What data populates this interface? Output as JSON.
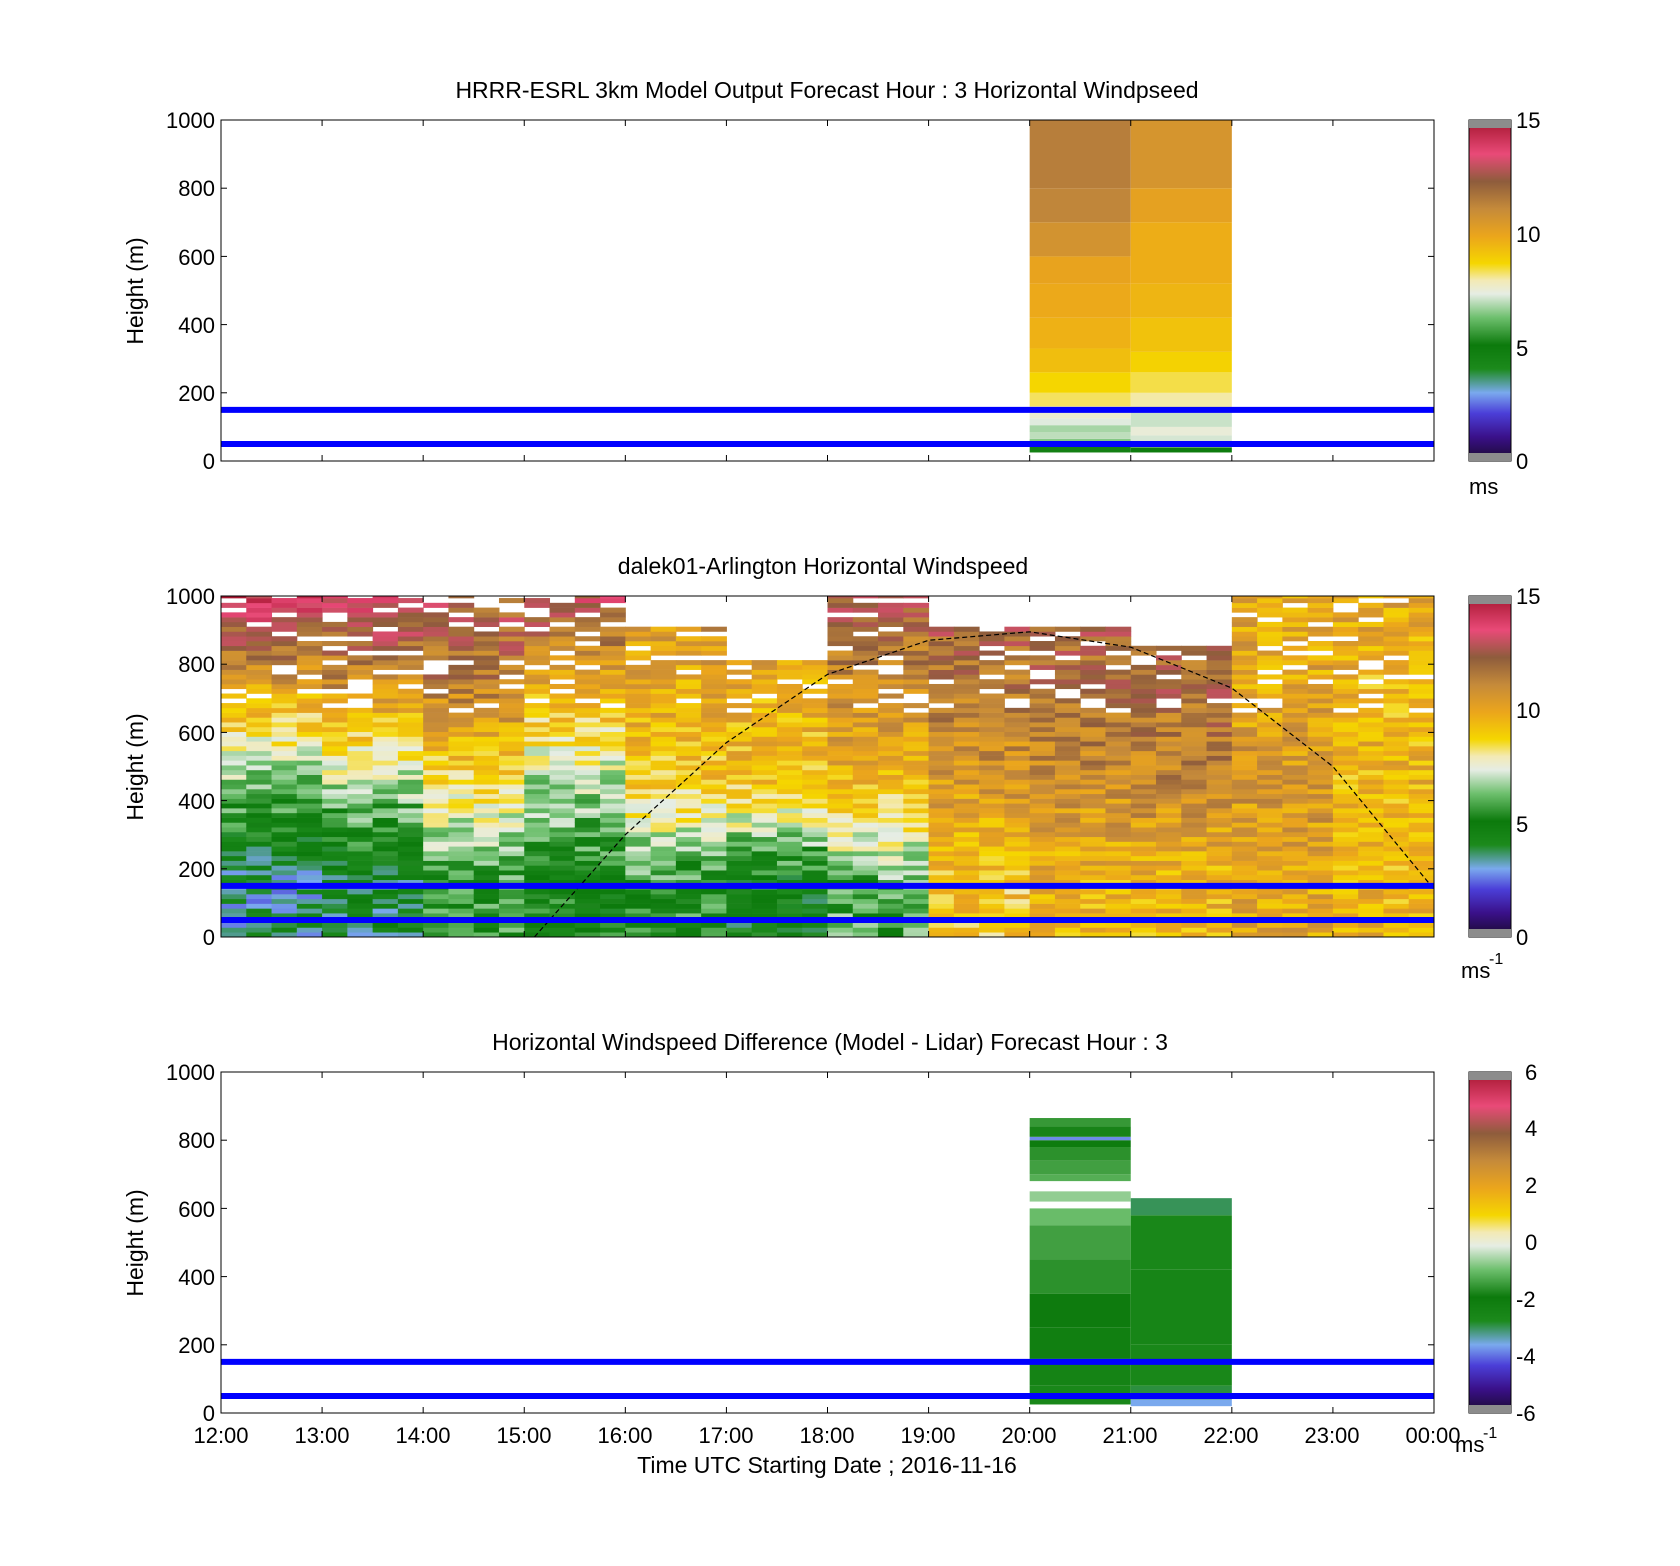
{
  "chart_data": [
    {
      "type": "heatmap",
      "title": "HRRR-ESRL 3km Model Output   Forecast Hour : 3 Horizontal Windpseed",
      "ylabel": "Height (m)",
      "ylim": [
        0,
        1000
      ],
      "yticks": [
        "0",
        "200",
        "400",
        "600",
        "800",
        "1000"
      ],
      "xlim": [
        "12:00",
        "00:00"
      ],
      "colorbar": {
        "ticks": [
          "0",
          "5",
          "10",
          "15"
        ],
        "range": [
          0,
          15
        ],
        "unit": "ms"
      },
      "reference_lines_m": [
        50,
        150
      ],
      "columns": [
        {
          "start": "20:00",
          "end": "21:00",
          "bottom_m": 25,
          "top_m": 1000,
          "levels": [
            [
              25,
              50,
              5.2
            ],
            [
              50,
              65,
              6.5
            ],
            [
              65,
              85,
              7.0
            ],
            [
              85,
              105,
              6.8
            ],
            [
              105,
              125,
              7.3
            ],
            [
              125,
              160,
              7.6
            ],
            [
              160,
              200,
              8.3
            ],
            [
              200,
              260,
              8.7
            ],
            [
              260,
              330,
              9.3
            ],
            [
              330,
              420,
              9.6
            ],
            [
              420,
              520,
              9.8
            ],
            [
              520,
              600,
              10.0
            ],
            [
              600,
              700,
              10.7
            ],
            [
              700,
              800,
              11.2
            ],
            [
              800,
              1000,
              11.4
            ]
          ]
        },
        {
          "start": "21:00",
          "end": "22:00",
          "bottom_m": 25,
          "top_m": 1000,
          "levels": [
            [
              25,
              40,
              5.0
            ],
            [
              40,
              55,
              6.8
            ],
            [
              55,
              75,
              7.2
            ],
            [
              75,
              100,
              7.5
            ],
            [
              100,
              145,
              7.1
            ],
            [
              145,
              200,
              8.0
            ],
            [
              200,
              260,
              8.4
            ],
            [
              260,
              320,
              8.8
            ],
            [
              320,
              420,
              9.2
            ],
            [
              420,
              520,
              9.5
            ],
            [
              520,
              700,
              9.7
            ],
            [
              700,
              800,
              10.1
            ],
            [
              800,
              1000,
              10.6
            ]
          ]
        }
      ]
    },
    {
      "type": "heatmap",
      "title": "dalek01-Arlington  Horizontal Windspeed",
      "ylabel": "Height (m)",
      "ylim": [
        0,
        1000
      ],
      "yticks": [
        "0",
        "200",
        "400",
        "600",
        "800",
        "1000"
      ],
      "xlim": [
        "12:00",
        "00:00"
      ],
      "colorbar": {
        "ticks": [
          "0",
          "5",
          "10",
          "15"
        ],
        "range": [
          0,
          15
        ],
        "unit": "ms",
        "unit_exp": "-1"
      },
      "reference_lines_m": [
        50,
        150
      ],
      "boundary_curve": {
        "style": "dashed",
        "points_h_m": [
          [
            15.1,
            0
          ],
          [
            16.0,
            300
          ],
          [
            17.0,
            570
          ],
          [
            18.0,
            770
          ],
          [
            19.0,
            870
          ],
          [
            20.0,
            895
          ],
          [
            21.0,
            850
          ],
          [
            22.0,
            730
          ],
          [
            23.0,
            500
          ],
          [
            24.0,
            140
          ]
        ]
      },
      "columns_hourly": [
        {
          "hour": "12:00",
          "low": 3.5,
          "mid": 6.5,
          "high": 10.5,
          "top": 14.0,
          "cover_m": 1000
        },
        {
          "hour": "13:00",
          "low": 4.0,
          "mid": 7.0,
          "high": 11.0,
          "top": 13.5,
          "cover_m": 1000
        },
        {
          "hour": "14:00",
          "low": 5.5,
          "mid": 8.5,
          "high": 11.5,
          "top": 12.5,
          "cover_m": 1000
        },
        {
          "hour": "15:00",
          "low": 5.0,
          "mid": 7.0,
          "high": 10.0,
          "top": 13.0,
          "cover_m": 1000
        },
        {
          "hour": "16:00",
          "low": 5.5,
          "mid": 9.0,
          "high": 10.0,
          "top": 11.0,
          "cover_m": 900
        },
        {
          "hour": "17:00",
          "low": 4.5,
          "mid": 9.2,
          "high": 9.8,
          "top": 10.5,
          "cover_m": 800
        },
        {
          "hour": "18:00",
          "low": 6.0,
          "mid": 9.5,
          "high": 11.0,
          "top": 12.5,
          "cover_m": 1000
        },
        {
          "hour": "19:00",
          "low": 9.0,
          "mid": 10.5,
          "high": 11.5,
          "top": 12.5,
          "cover_m": 900
        },
        {
          "hour": "20:00",
          "low": 9.5,
          "mid": 10.8,
          "high": 12.0,
          "top": 12.0,
          "cover_m": 900
        },
        {
          "hour": "21:00",
          "low": 9.5,
          "mid": 11.0,
          "high": 12.0,
          "top": 11.5,
          "cover_m": 850
        },
        {
          "hour": "22:00",
          "low": 10.0,
          "mid": 10.5,
          "high": 10.0,
          "top": 10.0,
          "cover_m": 1000
        },
        {
          "hour": "23:00",
          "low": 9.5,
          "mid": 9.5,
          "high": 9.5,
          "top": 10.0,
          "cover_m": 1000
        }
      ]
    },
    {
      "type": "heatmap",
      "title": "Horizontal Windspeed Difference (Model - Lidar) Forecast Hour : 3",
      "xlabel": "Time UTC  Starting Date ; 2016-11-16",
      "ylabel": "Height (m)",
      "ylim": [
        0,
        1000
      ],
      "yticks": [
        "0",
        "200",
        "400",
        "600",
        "800",
        "1000"
      ],
      "xticks": [
        "12:00",
        "13:00",
        "14:00",
        "15:00",
        "16:00",
        "17:00",
        "18:00",
        "19:00",
        "20:00",
        "21:00",
        "22:00",
        "23:00",
        "00:00"
      ],
      "colorbar": {
        "ticks": [
          "-6",
          "-4",
          "-2",
          "0",
          "2",
          "4",
          "6"
        ],
        "range": [
          -6,
          6
        ],
        "unit": "ms",
        "unit_exp": "-1"
      },
      "reference_lines_m": [
        50,
        150
      ],
      "columns": [
        {
          "start": "20:00",
          "end": "21:00",
          "levels": [
            [
              25,
              80,
              -2.6
            ],
            [
              80,
              160,
              -2.4
            ],
            [
              160,
              250,
              -2.2
            ],
            [
              250,
              350,
              -1.9
            ],
            [
              350,
              450,
              -1.6
            ],
            [
              450,
              550,
              -1.4
            ],
            [
              550,
              600,
              -1.0
            ],
            [
              620,
              650,
              -0.7
            ],
            [
              680,
              700,
              -1.2
            ],
            [
              700,
              740,
              -1.4
            ],
            [
              740,
              780,
              -1.6
            ],
            [
              780,
              800,
              -2.0
            ],
            [
              800,
              810,
              -3.8
            ],
            [
              810,
              840,
              -1.8
            ],
            [
              840,
              865,
              -1.5
            ]
          ]
        },
        {
          "start": "21:00",
          "end": "22:00",
          "levels": [
            [
              20,
              40,
              -3.6
            ],
            [
              40,
              80,
              -2.9
            ],
            [
              80,
              200,
              -2.6
            ],
            [
              200,
              420,
              -2.5
            ],
            [
              420,
              580,
              -2.6
            ],
            [
              580,
              630,
              -3.0
            ]
          ]
        }
      ]
    }
  ]
}
